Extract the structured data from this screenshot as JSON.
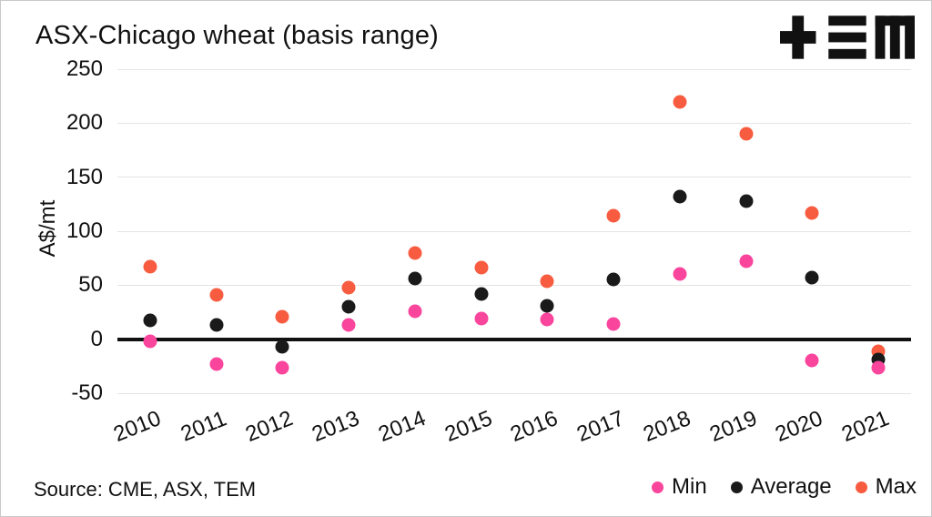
{
  "title": "ASX-Chicago wheat (basis range)",
  "logo_name": "TEM",
  "source": "Source: CME, ASX, TEM",
  "colors": {
    "min": "#fa459d",
    "average": "#1a1a1a",
    "max": "#f85c40",
    "gridline": "#e4e4e4",
    "zero_line": "#111111",
    "text": "#111111"
  },
  "legend": [
    {
      "label": "Min",
      "color": "#fa459d"
    },
    {
      "label": "Average",
      "color": "#1a1a1a"
    },
    {
      "label": "Max",
      "color": "#f85c40"
    }
  ],
  "chart_data": {
    "type": "scatter",
    "title": "ASX-Chicago wheat (basis range)",
    "xlabel": "",
    "ylabel": "A$/mt",
    "ylim": [
      -50,
      250
    ],
    "yticks": [
      250,
      200,
      150,
      100,
      50,
      0,
      -50
    ],
    "grid": true,
    "zero_line": true,
    "legend_position": "bottom-right",
    "categories": [
      "2010",
      "2011",
      "2012",
      "2013",
      "2014",
      "2015",
      "2016",
      "2017",
      "2018",
      "2019",
      "2020",
      "2021"
    ],
    "series": [
      {
        "name": "Min",
        "color": "#fa459d",
        "values": [
          -2,
          -23,
          -26,
          13,
          26,
          19,
          18,
          14,
          60,
          72,
          -20,
          -26
        ]
      },
      {
        "name": "Average",
        "color": "#1a1a1a",
        "values": [
          17,
          13,
          -7,
          30,
          56,
          42,
          31,
          55,
          132,
          128,
          57,
          -19
        ]
      },
      {
        "name": "Max",
        "color": "#f85c40",
        "values": [
          67,
          41,
          21,
          48,
          80,
          66,
          54,
          114,
          220,
          190,
          117,
          -11
        ]
      }
    ]
  }
}
